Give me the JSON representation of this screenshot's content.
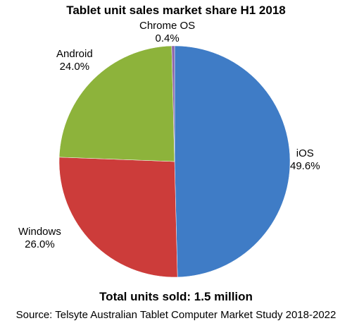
{
  "chart_data": {
    "type": "pie",
    "title": "Tablet unit sales market share H1 2018",
    "slices": [
      {
        "label": "iOS",
        "value": 49.6,
        "value_label": "49.6%",
        "color": "#3f7cc6"
      },
      {
        "label": "Windows",
        "value": 26.0,
        "value_label": "26.0%",
        "color": "#cc3c3a"
      },
      {
        "label": "Android",
        "value": 24.0,
        "value_label": "24.0%",
        "color": "#8db33b"
      },
      {
        "label": "Chrome OS",
        "value": 0.4,
        "value_label": "0.4%",
        "color": "#8e63a8"
      }
    ],
    "start_angle": "12 o'clock",
    "direction": "clockwise",
    "legend": "none",
    "notes": [
      "Total units sold: 1.5 million",
      "Source: Telsyte Australian Tablet Computer Market Study 2018-2022"
    ]
  }
}
